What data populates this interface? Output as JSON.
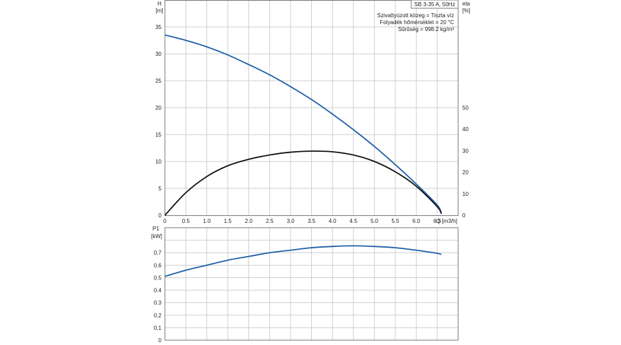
{
  "chart_data": [
    {
      "type": "line",
      "title": "SB 3-35 A, 50Hz",
      "info_lines": [
        "Szivattyúzott közeg = Tiszta víz",
        "Folyadék hőmérséklet = 20 °C",
        "Sűrűség = 998.2 kg/m³"
      ],
      "xlabel": "Q [m3/h]",
      "ylabel_left": [
        "H",
        "[m]"
      ],
      "ylabel_right": [
        "eta",
        "[%]"
      ],
      "xlim": [
        0,
        7
      ],
      "ylim_left": [
        0,
        40
      ],
      "ylim_right": [
        0,
        100
      ],
      "x_ticks": [
        "0",
        "0.5",
        "1.0",
        "1.5",
        "2.0",
        "2.5",
        "3.0",
        "3.5",
        "4.0",
        "4.5",
        "5.0",
        "5.5",
        "6.0",
        "6.5"
      ],
      "y_ticks_left": [
        "0",
        "5",
        "10",
        "15",
        "20",
        "25",
        "30",
        "35"
      ],
      "y_ticks_right": [
        "0",
        "10",
        "20",
        "30",
        "40",
        "50"
      ],
      "grid": true,
      "series": [
        {
          "axis": "left",
          "color": "#1f5fa8",
          "x": [
            0,
            0.5,
            1.0,
            1.5,
            2.0,
            2.5,
            3.0,
            3.5,
            4.0,
            4.5,
            5.0,
            5.5,
            6.0,
            6.5,
            6.6
          ],
          "y": [
            33.5,
            32.5,
            31.3,
            29.8,
            28.0,
            26.1,
            23.9,
            21.5,
            18.8,
            15.9,
            12.8,
            9.4,
            5.8,
            1.9,
            0.3
          ]
        },
        {
          "axis": "right",
          "color": "#111111",
          "x": [
            0,
            0.5,
            1.0,
            1.5,
            2.0,
            2.5,
            3.0,
            3.5,
            4.0,
            4.5,
            5.0,
            5.5,
            6.0,
            6.5,
            6.6
          ],
          "y": [
            0,
            10.5,
            18,
            23,
            26,
            28,
            29.3,
            29.8,
            29.5,
            28,
            25,
            20.2,
            13.5,
            4,
            0.7
          ]
        }
      ]
    },
    {
      "type": "line",
      "xlim": [
        0,
        7
      ],
      "ylim": [
        0,
        0.9
      ],
      "ylabel": [
        "P1",
        "[kW]"
      ],
      "y_ticks": [
        "0",
        "0.1",
        "0.2",
        "0.3",
        "0.4",
        "0.5",
        "0.6",
        "0.7"
      ],
      "grid": true,
      "series": [
        {
          "color": "#1f5fa8",
          "x": [
            0,
            0.5,
            1.0,
            1.5,
            2.0,
            2.5,
            3.0,
            3.5,
            4.0,
            4.5,
            5.0,
            5.5,
            6.0,
            6.5,
            6.6
          ],
          "y": [
            0.51,
            0.56,
            0.6,
            0.64,
            0.67,
            0.7,
            0.72,
            0.74,
            0.75,
            0.755,
            0.75,
            0.74,
            0.72,
            0.695,
            0.685
          ]
        }
      ]
    }
  ]
}
